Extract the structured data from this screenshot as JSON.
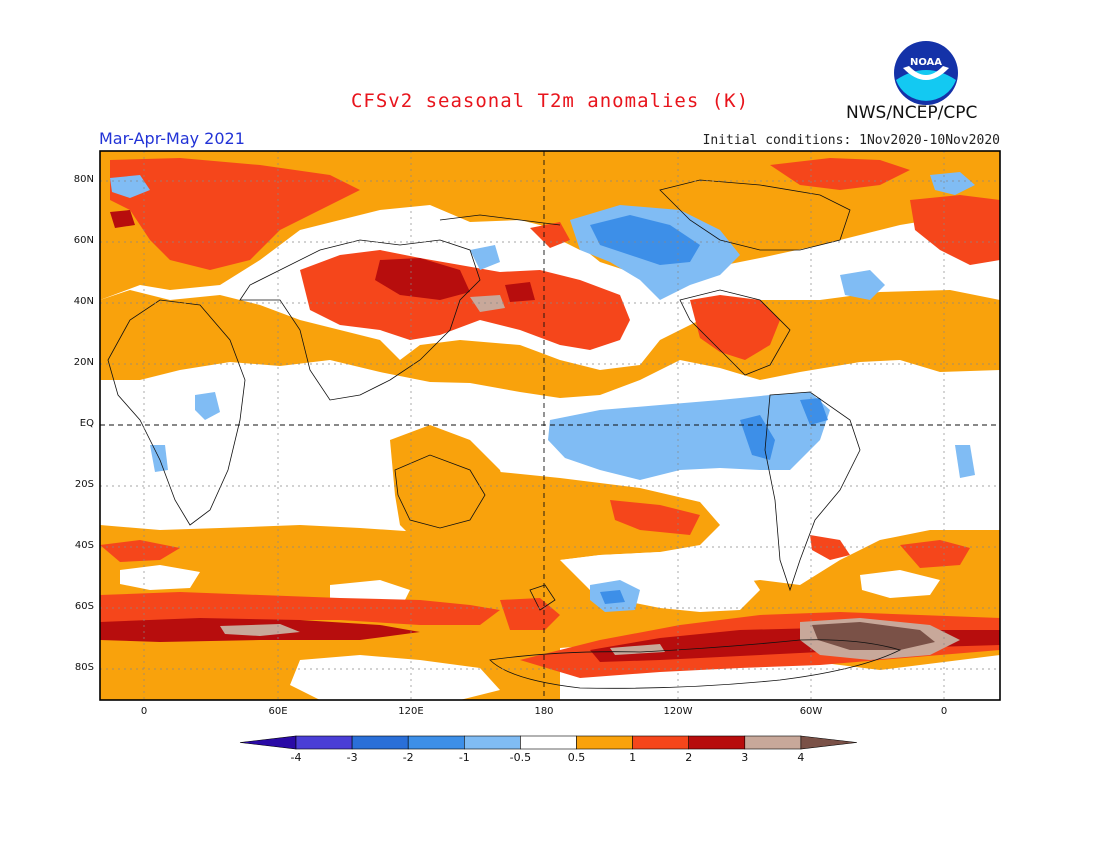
{
  "title": "CFSv2 seasonal T2m anomalies (K)",
  "agency": "NWS/NCEP/CPC",
  "logo_text": "NOAA",
  "season": "Mar-Apr-May 2021",
  "initial_conditions": "Initial conditions: 1Nov2020-10Nov2020",
  "lat_labels": [
    "80N",
    "60N",
    "40N",
    "20N",
    "EQ",
    "20S",
    "40S",
    "60S",
    "80S"
  ],
  "lon_labels": [
    "0",
    "60E",
    "120E",
    "180",
    "120W",
    "60W",
    "0"
  ],
  "colorbar": {
    "labels": [
      "-4",
      "-3",
      "-2",
      "-1",
      "-0.5",
      "0.5",
      "1",
      "2",
      "3",
      "4"
    ],
    "colors": [
      "#2a0aa6",
      "#4a3ed6",
      "#2a6fd8",
      "#3d8fe8",
      "#80bcf4",
      "#ffffff",
      "#f9a20c",
      "#f5461b",
      "#b70d0d",
      "#c8a89a",
      "#7a5147"
    ]
  },
  "map": {
    "lon_range": [
      -20,
      385
    ],
    "lat_range": [
      -90,
      90
    ],
    "grid": true,
    "background_color": "#ffffff"
  }
}
